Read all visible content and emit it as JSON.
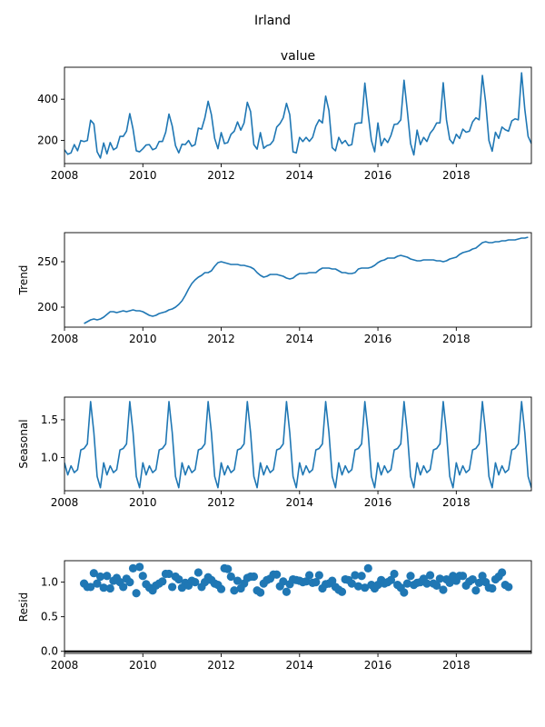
{
  "chart_data": {
    "type": "line",
    "title": "Irland",
    "x_ticks": [
      "2008",
      "2010",
      "2012",
      "2014",
      "2016",
      "2018"
    ],
    "panels": [
      {
        "kind": "line",
        "title": "value",
        "ylabel": "",
        "ylim": [
          88,
          555
        ],
        "yticks": [
          200,
          400
        ],
        "ytick_labels": [
          "200",
          "400"
        ],
        "start": 2008.0,
        "values": [
          155,
          133,
          140,
          180,
          150,
          200,
          195,
          200,
          298,
          280,
          145,
          115,
          188,
          135,
          190,
          155,
          165,
          220,
          220,
          245,
          330,
          255,
          150,
          145,
          160,
          178,
          180,
          155,
          162,
          195,
          195,
          240,
          328,
          270,
          175,
          140,
          182,
          180,
          200,
          172,
          180,
          260,
          255,
          310,
          390,
          325,
          210,
          160,
          238,
          185,
          190,
          230,
          245,
          290,
          250,
          285,
          385,
          340,
          180,
          158,
          238,
          162,
          175,
          180,
          200,
          265,
          282,
          310,
          380,
          325,
          145,
          140,
          215,
          195,
          215,
          196,
          215,
          270,
          300,
          285,
          415,
          345,
          165,
          150,
          215,
          185,
          200,
          175,
          180,
          280,
          285,
          285,
          478,
          330,
          200,
          145,
          285,
          175,
          210,
          190,
          225,
          278,
          280,
          300,
          492,
          345,
          185,
          130,
          250,
          180,
          215,
          195,
          235,
          255,
          285,
          285,
          480,
          300,
          205,
          185,
          230,
          210,
          255,
          240,
          245,
          290,
          310,
          300,
          515,
          385,
          200,
          148,
          240,
          210,
          265,
          252,
          245,
          295,
          305,
          300,
          528,
          350,
          220,
          185
        ]
      },
      {
        "kind": "line",
        "title": "",
        "ylabel": "Trend",
        "ylim": [
          178,
          282
        ],
        "yticks": [
          200,
          250
        ],
        "ytick_labels": [
          "200",
          "250"
        ],
        "start": 2008.5,
        "values": [
          182,
          184,
          186,
          187,
          186,
          187,
          189,
          192,
          195,
          195,
          194,
          195,
          196,
          195,
          196,
          197,
          196,
          196,
          195,
          193,
          191,
          190,
          191,
          193,
          194,
          195,
          197,
          198,
          200,
          203,
          207,
          213,
          220,
          226,
          230,
          233,
          235,
          238,
          238,
          240,
          245,
          249,
          250,
          249,
          248,
          247,
          247,
          247,
          246,
          246,
          245,
          244,
          242,
          238,
          235,
          233,
          234,
          236,
          236,
          236,
          235,
          234,
          232,
          231,
          232,
          235,
          237,
          237,
          237,
          238,
          238,
          238,
          241,
          243,
          243,
          243,
          242,
          242,
          240,
          238,
          238,
          237,
          237,
          238,
          242,
          243,
          243,
          243,
          244,
          246,
          249,
          251,
          252,
          254,
          254,
          254,
          256,
          257,
          256,
          255,
          253,
          252,
          251,
          251,
          252,
          252,
          252,
          252,
          251,
          251,
          250,
          251,
          253,
          254,
          255,
          258,
          260,
          261,
          262,
          264,
          265,
          268,
          271,
          272,
          271,
          271,
          272,
          272,
          273,
          273,
          274,
          274,
          274,
          275,
          276,
          276,
          277
        ]
      },
      {
        "kind": "line",
        "title": "",
        "ylabel": "Seasonal",
        "ylim": [
          0.56,
          1.8
        ],
        "yticks": [
          1.0,
          1.5
        ],
        "ytick_labels": [
          "1.0",
          "1.5"
        ],
        "start": 2008.0,
        "pattern": [
          0.93,
          0.77,
          0.89,
          0.8,
          0.84,
          1.1,
          1.12,
          1.18,
          1.74,
          1.33,
          0.75,
          0.6
        ]
      },
      {
        "kind": "scatter",
        "title": "",
        "ylabel": "Resid",
        "ylim": [
          -0.03,
          1.31
        ],
        "yticks": [
          0.0,
          0.5,
          1.0
        ],
        "ytick_labels": [
          "0.0",
          "0.5",
          "1.0"
        ],
        "baseline": 0.0,
        "start": 2008.5,
        "values": [
          0.98,
          0.93,
          0.93,
          1.13,
          0.98,
          1.08,
          0.92,
          1.09,
          0.91,
          1.02,
          1.06,
          1.0,
          0.93,
          1.05,
          1.0,
          1.2,
          0.84,
          1.22,
          1.09,
          0.97,
          0.92,
          0.88,
          0.95,
          0.98,
          1.01,
          1.12,
          1.12,
          0.93,
          1.08,
          1.04,
          0.92,
          0.99,
          0.95,
          1.02,
          1.0,
          1.14,
          0.93,
          1.0,
          1.07,
          1.03,
          0.98,
          0.96,
          0.9,
          1.2,
          1.19,
          1.08,
          0.88,
          1.02,
          0.91,
          0.98,
          1.06,
          1.08,
          1.08,
          0.88,
          0.85,
          0.98,
          1.03,
          1.05,
          1.11,
          1.11,
          0.94,
          1.01,
          0.86,
          0.97,
          1.04,
          1.03,
          1.02,
          1.0,
          1.01,
          1.1,
          0.99,
          1.0,
          1.1,
          0.91,
          0.97,
          0.98,
          1.02,
          0.93,
          0.89,
          0.86,
          1.04,
          1.03,
          0.98,
          1.1,
          0.94,
          1.09,
          0.92,
          1.2,
          0.96,
          0.91,
          0.96,
          1.03,
          0.98,
          1.0,
          1.03,
          1.12,
          0.96,
          0.92,
          0.85,
          0.98,
          1.09,
          0.96,
          0.99,
          1.0,
          1.05,
          0.98,
          1.1,
          0.98,
          0.95,
          1.05,
          0.89,
          1.04,
          0.99,
          1.09,
          1.02,
          1.09,
          1.09,
          0.95,
          1.01,
          1.04,
          0.88,
          0.99,
          1.09,
          1.0,
          0.92,
          0.91,
          1.04,
          1.08,
          1.14,
          0.96,
          0.93
        ]
      }
    ],
    "color": "#1f77b4"
  }
}
